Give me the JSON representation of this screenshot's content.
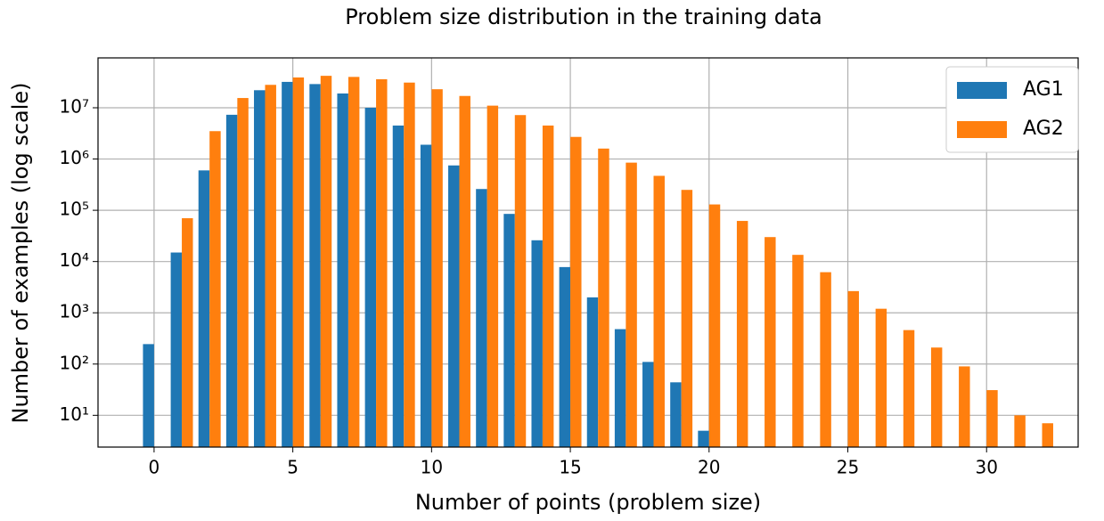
{
  "chart_data": {
    "type": "bar",
    "title": "Problem size distribution in the training data",
    "xlabel": "Number of points (problem size)",
    "ylabel": "Number of examples (log scale)",
    "x": [
      0,
      1,
      2,
      3,
      4,
      5,
      6,
      7,
      8,
      9,
      10,
      11,
      12,
      13,
      14,
      15,
      16,
      17,
      18,
      19,
      20,
      21,
      22,
      23,
      24,
      25,
      26,
      27,
      28,
      29,
      30,
      31,
      32
    ],
    "series": [
      {
        "name": "AG1",
        "color": "#1f77b4",
        "values": [
          245,
          15000,
          600000,
          7300000,
          22000000,
          32000000,
          29000000,
          19000000,
          10000000,
          4500000,
          1900000,
          750000,
          260000,
          85000,
          26000,
          7800,
          2000,
          480,
          110,
          44,
          5,
          null,
          null,
          null,
          null,
          null,
          null,
          null,
          null,
          null,
          null,
          null,
          null
        ]
      },
      {
        "name": "AG2",
        "color": "#ff7f0e",
        "values": [
          null,
          70000,
          3500000,
          15500000,
          28000000,
          39000000,
          42000000,
          40000000,
          36000000,
          31000000,
          23000000,
          17000000,
          11000000,
          7200000,
          4500000,
          2700000,
          1600000,
          850000,
          470000,
          250000,
          130000,
          62000,
          30000,
          13500,
          6200,
          2650,
          1200,
          460,
          210,
          90,
          31,
          10,
          7
        ]
      }
    ],
    "xlim": [
      -2.02,
      33.3
    ],
    "xticks": [
      0,
      5,
      10,
      15,
      20,
      25,
      30
    ],
    "ylim": [
      2.4,
      94000000
    ],
    "log_y": true,
    "yticks": [
      {
        "value": 10,
        "label": "10¹"
      },
      {
        "value": 100,
        "label": "10²"
      },
      {
        "value": 1000,
        "label": "10³"
      },
      {
        "value": 10000,
        "label": "10⁴"
      },
      {
        "value": 100000,
        "label": "10⁵"
      },
      {
        "value": 1000000,
        "label": "10⁶"
      },
      {
        "value": 10000000,
        "label": "10⁷"
      }
    ],
    "grid": true,
    "legend": "upper right"
  }
}
